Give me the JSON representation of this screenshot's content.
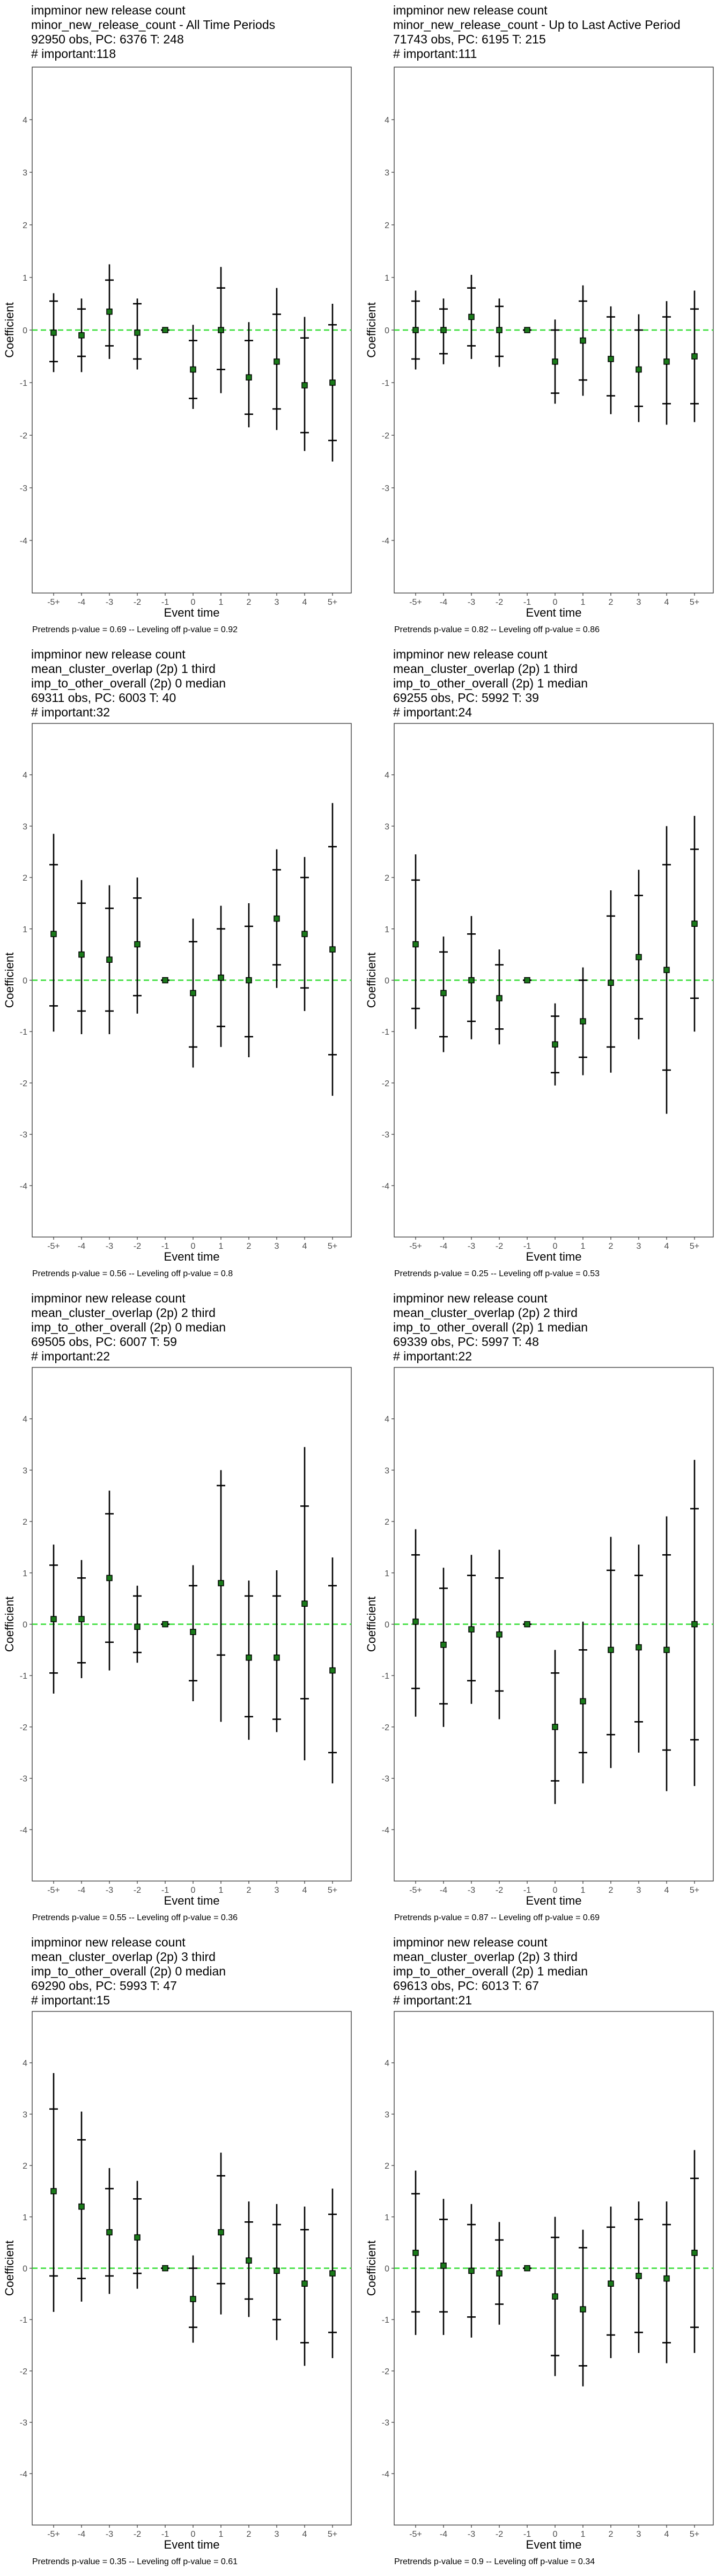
{
  "chart_data": [
    {
      "type": "errorbar",
      "title_lines": [
        "impminor new release count",
        "minor_new_release_count - All Time Periods",
        "92950 obs, PC: 6376 T: 248",
        "# important:118"
      ],
      "footer": "Pretrends p-value = 0.69 -- Leveling off p-value = 0.92",
      "xlabel": "Event time",
      "ylabel": "Coefficient",
      "categories": [
        "-5+",
        "-4",
        "-3",
        "-2",
        "-1",
        "0",
        "1",
        "2",
        "3",
        "4",
        "5+"
      ],
      "ylim": [
        -5,
        5
      ],
      "yticks": [
        -4,
        -3,
        -2,
        -1,
        0,
        1,
        2,
        3,
        4
      ],
      "point": [
        -0.05,
        -0.1,
        0.35,
        -0.05,
        0,
        -0.75,
        0,
        -0.9,
        -0.6,
        -1.05,
        -1.0
      ],
      "inner": [
        [
          -0.6,
          0.55
        ],
        [
          -0.5,
          0.4
        ],
        [
          -0.3,
          0.95
        ],
        [
          -0.55,
          0.5
        ],
        [
          0,
          0
        ],
        [
          -1.3,
          -0.2
        ],
        [
          -0.75,
          0.8
        ],
        [
          -1.6,
          -0.2
        ],
        [
          -1.5,
          0.3
        ],
        [
          -1.95,
          -0.15
        ],
        [
          -2.1,
          0.1
        ]
      ],
      "outer": [
        [
          -0.8,
          0.7
        ],
        [
          -0.8,
          0.6
        ],
        [
          -0.55,
          1.25
        ],
        [
          -0.75,
          0.6
        ],
        [
          0,
          0
        ],
        [
          -1.5,
          0.1
        ],
        [
          -1.2,
          1.2
        ],
        [
          -1.85,
          0.15
        ],
        [
          -1.9,
          0.8
        ],
        [
          -2.3,
          0.25
        ],
        [
          -2.5,
          0.5
        ]
      ],
      "point_color": "#1a7a1a",
      "zero_line_color": "#33dd33"
    },
    {
      "type": "errorbar",
      "title_lines": [
        "impminor new release count",
        "minor_new_release_count - Up to Last Active Period",
        "71743 obs, PC: 6195 T: 215",
        "# important:111"
      ],
      "footer": "Pretrends p-value = 0.82 -- Leveling off p-value = 0.86",
      "xlabel": "Event time",
      "ylabel": "Coefficient",
      "categories": [
        "-5+",
        "-4",
        "-3",
        "-2",
        "-1",
        "0",
        "1",
        "2",
        "3",
        "4",
        "5+"
      ],
      "ylim": [
        -5,
        5
      ],
      "yticks": [
        -4,
        -3,
        -2,
        -1,
        0,
        1,
        2,
        3,
        4
      ],
      "point": [
        0.0,
        0.0,
        0.25,
        0.0,
        0,
        -0.6,
        -0.2,
        -0.55,
        -0.75,
        -0.6,
        -0.5
      ],
      "inner": [
        [
          -0.55,
          0.55
        ],
        [
          -0.45,
          0.4
        ],
        [
          -0.3,
          0.8
        ],
        [
          -0.5,
          0.45
        ],
        [
          0,
          0
        ],
        [
          -1.2,
          0.0
        ],
        [
          -0.95,
          0.55
        ],
        [
          -1.25,
          0.25
        ],
        [
          -1.45,
          0.0
        ],
        [
          -1.4,
          0.25
        ],
        [
          -1.4,
          0.4
        ]
      ],
      "outer": [
        [
          -0.75,
          0.75
        ],
        [
          -0.65,
          0.6
        ],
        [
          -0.55,
          1.05
        ],
        [
          -0.7,
          0.6
        ],
        [
          0,
          0
        ],
        [
          -1.4,
          0.2
        ],
        [
          -1.25,
          0.85
        ],
        [
          -1.6,
          0.45
        ],
        [
          -1.75,
          0.3
        ],
        [
          -1.8,
          0.55
        ],
        [
          -1.75,
          0.75
        ]
      ],
      "point_color": "#1a7a1a",
      "zero_line_color": "#33dd33"
    },
    {
      "type": "errorbar",
      "title_lines": [
        "impminor new release count",
        "mean_cluster_overlap (2p) 1 third",
        "imp_to_other_overall (2p) 0 median",
        "69311 obs, PC: 6003 T: 40",
        "# important:32"
      ],
      "footer": "Pretrends p-value = 0.56 -- Leveling off p-value = 0.8",
      "xlabel": "Event time",
      "ylabel": "Coefficient",
      "categories": [
        "-5+",
        "-4",
        "-3",
        "-2",
        "-1",
        "0",
        "1",
        "2",
        "3",
        "4",
        "5+"
      ],
      "ylim": [
        -5,
        5
      ],
      "yticks": [
        -4,
        -3,
        -2,
        -1,
        0,
        1,
        2,
        3,
        4
      ],
      "point": [
        0.9,
        0.5,
        0.4,
        0.7,
        0,
        -0.25,
        0.05,
        0.0,
        1.2,
        0.9,
        0.6
      ],
      "inner": [
        [
          -0.5,
          2.25
        ],
        [
          -0.6,
          1.5
        ],
        [
          -0.6,
          1.4
        ],
        [
          -0.3,
          1.6
        ],
        [
          0,
          0
        ],
        [
          -1.3,
          0.75
        ],
        [
          -0.9,
          1.0
        ],
        [
          -1.1,
          1.05
        ],
        [
          0.3,
          2.15
        ],
        [
          -0.15,
          2.0
        ],
        [
          -1.45,
          2.6
        ]
      ],
      "outer": [
        [
          -1.0,
          2.85
        ],
        [
          -1.05,
          1.95
        ],
        [
          -1.05,
          1.85
        ],
        [
          -0.65,
          2.0
        ],
        [
          0,
          0
        ],
        [
          -1.7,
          1.2
        ],
        [
          -1.3,
          1.45
        ],
        [
          -1.5,
          1.5
        ],
        [
          -0.15,
          2.55
        ],
        [
          -0.6,
          2.4
        ],
        [
          -2.25,
          3.45
        ]
      ],
      "point_color": "#1a7a1a",
      "zero_line_color": "#33dd33"
    },
    {
      "type": "errorbar",
      "title_lines": [
        "impminor new release count",
        "mean_cluster_overlap (2p) 1 third",
        "imp_to_other_overall (2p) 1 median",
        "69255 obs, PC: 5992 T: 39",
        "# important:24"
      ],
      "footer": "Pretrends p-value = 0.25 -- Leveling off p-value = 0.53",
      "xlabel": "Event time",
      "ylabel": "Coefficient",
      "categories": [
        "-5+",
        "-4",
        "-3",
        "-2",
        "-1",
        "0",
        "1",
        "2",
        "3",
        "4",
        "5+"
      ],
      "ylim": [
        -5,
        5
      ],
      "yticks": [
        -4,
        -3,
        -2,
        -1,
        0,
        1,
        2,
        3,
        4
      ],
      "point": [
        0.7,
        -0.25,
        0.0,
        -0.35,
        0,
        -1.25,
        -0.8,
        -0.05,
        0.45,
        0.2,
        1.1
      ],
      "inner": [
        [
          -0.55,
          1.95
        ],
        [
          -1.1,
          0.55
        ],
        [
          -0.8,
          0.9
        ],
        [
          -0.95,
          0.3
        ],
        [
          0,
          0
        ],
        [
          -1.8,
          -0.7
        ],
        [
          -1.5,
          0.0
        ],
        [
          -1.3,
          1.25
        ],
        [
          -0.75,
          1.65
        ],
        [
          -1.75,
          2.25
        ],
        [
          -0.35,
          2.55
        ]
      ],
      "outer": [
        [
          -0.95,
          2.45
        ],
        [
          -1.4,
          0.85
        ],
        [
          -1.15,
          1.25
        ],
        [
          -1.25,
          0.6
        ],
        [
          0,
          0
        ],
        [
          -2.05,
          -0.45
        ],
        [
          -1.85,
          0.25
        ],
        [
          -1.8,
          1.75
        ],
        [
          -1.15,
          2.15
        ],
        [
          -2.6,
          3.0
        ],
        [
          -1.0,
          3.2
        ]
      ],
      "point_color": "#1a7a1a",
      "zero_line_color": "#33dd33"
    },
    {
      "type": "errorbar",
      "title_lines": [
        "impminor new release count",
        "mean_cluster_overlap (2p) 2 third",
        "imp_to_other_overall (2p) 0 median",
        "69505 obs, PC: 6007 T: 59",
        "# important:22"
      ],
      "footer": "Pretrends p-value = 0.55 -- Leveling off p-value = 0.36",
      "xlabel": "Event time",
      "ylabel": "Coefficient",
      "categories": [
        "-5+",
        "-4",
        "-3",
        "-2",
        "-1",
        "0",
        "1",
        "2",
        "3",
        "4",
        "5+"
      ],
      "ylim": [
        -5,
        5
      ],
      "yticks": [
        -4,
        -3,
        -2,
        -1,
        0,
        1,
        2,
        3,
        4
      ],
      "point": [
        0.1,
        0.1,
        0.9,
        -0.05,
        0,
        -0.15,
        0.8,
        -0.65,
        -0.65,
        0.4,
        -0.9
      ],
      "inner": [
        [
          -0.95,
          1.15
        ],
        [
          -0.75,
          0.9
        ],
        [
          -0.35,
          2.15
        ],
        [
          -0.55,
          0.55
        ],
        [
          0,
          0
        ],
        [
          -1.1,
          0.75
        ],
        [
          -0.6,
          2.7
        ],
        [
          -1.8,
          0.55
        ],
        [
          -1.85,
          0.55
        ],
        [
          -1.45,
          2.3
        ],
        [
          -2.5,
          0.75
        ]
      ],
      "outer": [
        [
          -1.35,
          1.55
        ],
        [
          -1.05,
          1.25
        ],
        [
          -0.9,
          2.6
        ],
        [
          -0.75,
          0.75
        ],
        [
          0,
          0
        ],
        [
          -1.5,
          1.15
        ],
        [
          -1.9,
          3.0
        ],
        [
          -2.25,
          0.85
        ],
        [
          -2.1,
          1.05
        ],
        [
          -2.65,
          3.45
        ],
        [
          -3.1,
          1.3
        ]
      ],
      "point_color": "#1a7a1a",
      "zero_line_color": "#33dd33"
    },
    {
      "type": "errorbar",
      "title_lines": [
        "impminor new release count",
        "mean_cluster_overlap (2p) 2 third",
        "imp_to_other_overall (2p) 1 median",
        "69339 obs, PC: 5997 T: 48",
        "# important:22"
      ],
      "footer": "Pretrends p-value = 0.87 -- Leveling off p-value = 0.69",
      "xlabel": "Event time",
      "ylabel": "Coefficient",
      "categories": [
        "-5+",
        "-4",
        "-3",
        "-2",
        "-1",
        "0",
        "1",
        "2",
        "3",
        "4",
        "5+"
      ],
      "ylim": [
        -5,
        5
      ],
      "yticks": [
        -4,
        -3,
        -2,
        -1,
        0,
        1,
        2,
        3,
        4
      ],
      "point": [
        0.05,
        -0.4,
        -0.1,
        -0.2,
        0,
        -2.0,
        -1.5,
        -0.5,
        -0.45,
        -0.5,
        0.0
      ],
      "inner": [
        [
          -1.25,
          1.35
        ],
        [
          -1.55,
          0.7
        ],
        [
          -1.1,
          0.95
        ],
        [
          -1.3,
          0.9
        ],
        [
          0,
          0
        ],
        [
          -3.05,
          -0.95
        ],
        [
          -2.5,
          -0.5
        ],
        [
          -2.15,
          1.05
        ],
        [
          -1.9,
          0.95
        ],
        [
          -2.45,
          1.35
        ],
        [
          -2.25,
          2.25
        ]
      ],
      "outer": [
        [
          -1.8,
          1.85
        ],
        [
          -2.0,
          1.1
        ],
        [
          -1.55,
          1.35
        ],
        [
          -1.85,
          1.45
        ],
        [
          0,
          0
        ],
        [
          -3.5,
          -0.5
        ],
        [
          -3.1,
          0.05
        ],
        [
          -2.8,
          1.7
        ],
        [
          -2.5,
          1.55
        ],
        [
          -3.25,
          2.1
        ],
        [
          -3.15,
          3.2
        ]
      ],
      "point_color": "#1a7a1a",
      "zero_line_color": "#33dd33"
    },
    {
      "type": "errorbar",
      "title_lines": [
        "impminor new release count",
        "mean_cluster_overlap (2p) 3 third",
        "imp_to_other_overall (2p) 0 median",
        "69290 obs, PC: 5993 T: 47",
        "# important:15"
      ],
      "footer": "Pretrends p-value = 0.35 -- Leveling off p-value = 0.61",
      "xlabel": "Event time",
      "ylabel": "Coefficient",
      "categories": [
        "-5+",
        "-4",
        "-3",
        "-2",
        "-1",
        "0",
        "1",
        "2",
        "3",
        "4",
        "5+"
      ],
      "ylim": [
        -5,
        5
      ],
      "yticks": [
        -4,
        -3,
        -2,
        -1,
        0,
        1,
        2,
        3,
        4
      ],
      "point": [
        1.5,
        1.2,
        0.7,
        0.6,
        0,
        -0.6,
        0.7,
        0.15,
        -0.05,
        -0.3,
        -0.1
      ],
      "inner": [
        [
          -0.15,
          3.1
        ],
        [
          -0.2,
          2.5
        ],
        [
          -0.15,
          1.55
        ],
        [
          -0.1,
          1.35
        ],
        [
          0,
          0
        ],
        [
          -1.15,
          0.0
        ],
        [
          -0.3,
          1.8
        ],
        [
          -0.6,
          0.9
        ],
        [
          -1.0,
          0.85
        ],
        [
          -1.45,
          0.75
        ],
        [
          -1.25,
          1.05
        ]
      ],
      "outer": [
        [
          -0.85,
          3.8
        ],
        [
          -0.65,
          3.05
        ],
        [
          -0.5,
          1.95
        ],
        [
          -0.4,
          1.7
        ],
        [
          0,
          0
        ],
        [
          -1.45,
          0.25
        ],
        [
          -0.9,
          2.25
        ],
        [
          -0.95,
          1.3
        ],
        [
          -1.4,
          1.25
        ],
        [
          -1.9,
          1.2
        ],
        [
          -1.75,
          1.55
        ]
      ],
      "point_color": "#1a7a1a",
      "zero_line_color": "#33dd33"
    },
    {
      "type": "errorbar",
      "title_lines": [
        "impminor new release count",
        "mean_cluster_overlap (2p) 3 third",
        "imp_to_other_overall (2p) 1 median",
        "69613 obs, PC: 6013 T: 67",
        "# important:21"
      ],
      "footer": "Pretrends p-value = 0.9 -- Leveling off p-value = 0.34",
      "xlabel": "Event time",
      "ylabel": "Coefficient",
      "categories": [
        "-5+",
        "-4",
        "-3",
        "-2",
        "-1",
        "0",
        "1",
        "2",
        "3",
        "4",
        "5+"
      ],
      "ylim": [
        -5,
        5
      ],
      "yticks": [
        -4,
        -3,
        -2,
        -1,
        0,
        1,
        2,
        3,
        4
      ],
      "point": [
        0.3,
        0.05,
        -0.05,
        -0.1,
        0,
        -0.55,
        -0.8,
        -0.3,
        -0.15,
        -0.2,
        0.3
      ],
      "inner": [
        [
          -0.85,
          1.45
        ],
        [
          -0.85,
          0.95
        ],
        [
          -0.95,
          0.85
        ],
        [
          -0.7,
          0.55
        ],
        [
          0,
          0
        ],
        [
          -1.7,
          0.6
        ],
        [
          -1.9,
          0.4
        ],
        [
          -1.3,
          0.8
        ],
        [
          -1.25,
          0.95
        ],
        [
          -1.45,
          0.85
        ],
        [
          -1.15,
          1.75
        ]
      ],
      "outer": [
        [
          -1.3,
          1.9
        ],
        [
          -1.3,
          1.35
        ],
        [
          -1.35,
          1.25
        ],
        [
          -1.1,
          0.9
        ],
        [
          0,
          0
        ],
        [
          -2.1,
          1.0
        ],
        [
          -2.3,
          0.75
        ],
        [
          -1.75,
          1.2
        ],
        [
          -1.65,
          1.3
        ],
        [
          -1.85,
          1.3
        ],
        [
          -1.65,
          2.3
        ]
      ],
      "point_color": "#1a7a1a",
      "zero_line_color": "#33dd33"
    }
  ]
}
